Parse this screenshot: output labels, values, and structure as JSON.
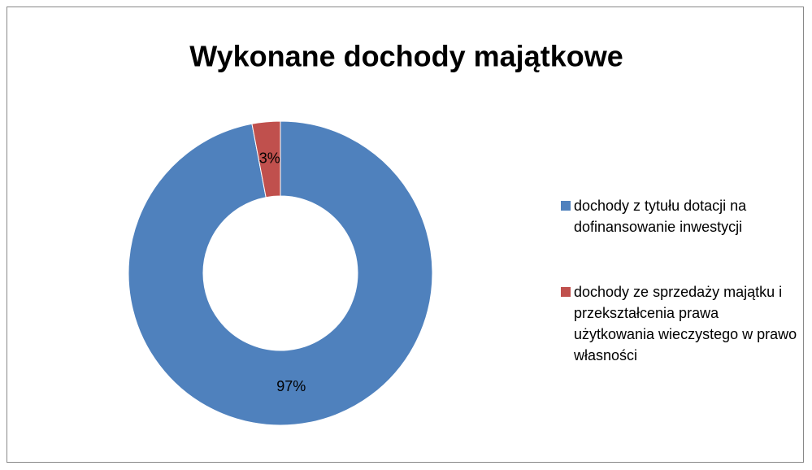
{
  "chart_data": {
    "type": "donut",
    "title": "Wykonane dochody majątkowe",
    "categories": [
      "dochody z tytułu dotacji na dofinansowanie inwestycji",
      "dochody ze sprzedaży majątku i przekształcenia prawa użytkowania wieczystego w prawo własności"
    ],
    "values": [
      97,
      3
    ],
    "value_labels": [
      "97%",
      "3%"
    ],
    "colors": [
      "#4f81bd",
      "#c0504d"
    ],
    "legend": "right"
  }
}
